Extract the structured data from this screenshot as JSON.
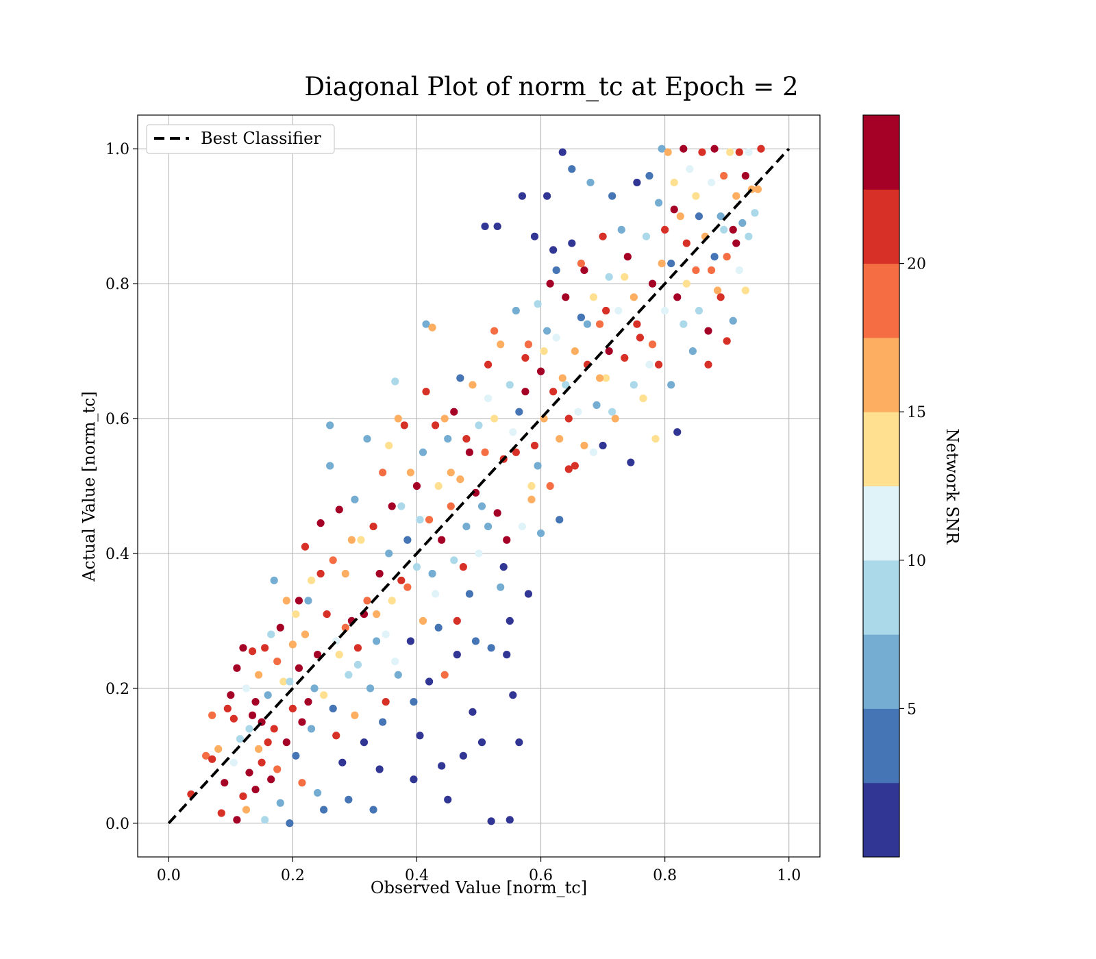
{
  "chart_data": {
    "type": "scatter",
    "title": "Diagonal Plot of norm_tc at Epoch = 2",
    "xlabel": "Observed Value [norm_tc]",
    "ylabel": "Actual Value [norm_tc]",
    "xlim": [
      -0.05,
      1.05
    ],
    "ylim": [
      -0.05,
      1.05
    ],
    "xticks": [
      "0.0",
      "0.2",
      "0.4",
      "0.6",
      "0.8",
      "1.0"
    ],
    "yticks": [
      "0.0",
      "0.2",
      "0.4",
      "0.6",
      "0.8",
      "1.0"
    ],
    "grid": true,
    "legend": {
      "placement": "top-left",
      "entries": [
        "Best Classifier"
      ]
    },
    "reference_line": {
      "name": "Best Classifier",
      "style": "dashed",
      "color": "#000000",
      "x": [
        0,
        1
      ],
      "y": [
        0,
        1
      ]
    },
    "colorbar": {
      "label": "Network SNR",
      "range": [
        0,
        25
      ],
      "ticks": [
        "5",
        "10",
        "15",
        "20"
      ],
      "colors": [
        "#313695",
        "#4575b4",
        "#74add1",
        "#abd9e9",
        "#e0f3f8",
        "#fee090",
        "#fdae61",
        "#f46d43",
        "#d73027",
        "#a50026"
      ]
    },
    "points": [
      [
        0.036,
        0.043,
        20
      ],
      [
        0.06,
        0.1,
        18
      ],
      [
        0.07,
        0.095,
        22
      ],
      [
        0.07,
        0.16,
        19
      ],
      [
        0.08,
        0.11,
        16
      ],
      [
        0.085,
        0.015,
        21
      ],
      [
        0.09,
        0.06,
        23
      ],
      [
        0.095,
        0.17,
        22
      ],
      [
        0.1,
        0.19,
        24
      ],
      [
        0.105,
        0.155,
        20
      ],
      [
        0.11,
        0.23,
        24
      ],
      [
        0.11,
        0.005,
        23
      ],
      [
        0.115,
        0.125,
        9
      ],
      [
        0.12,
        0.26,
        24
      ],
      [
        0.12,
        0.04,
        22
      ],
      [
        0.125,
        0.2,
        11
      ],
      [
        0.13,
        0.075,
        24
      ],
      [
        0.13,
        0.14,
        8
      ],
      [
        0.135,
        0.255,
        20
      ],
      [
        0.14,
        0.18,
        24
      ],
      [
        0.14,
        0.05,
        24
      ],
      [
        0.145,
        0.22,
        15
      ],
      [
        0.15,
        0.09,
        21
      ],
      [
        0.15,
        0.15,
        24
      ],
      [
        0.155,
        0.26,
        22
      ],
      [
        0.155,
        0.005,
        9
      ],
      [
        0.16,
        0.12,
        21
      ],
      [
        0.16,
        0.19,
        6
      ],
      [
        0.165,
        0.065,
        24
      ],
      [
        0.17,
        0.36,
        7
      ],
      [
        0.17,
        0.14,
        22
      ],
      [
        0.175,
        0.24,
        18
      ],
      [
        0.18,
        0.29,
        24
      ],
      [
        0.18,
        0.03,
        5
      ],
      [
        0.185,
        0.21,
        13
      ],
      [
        0.19,
        0.12,
        24
      ],
      [
        0.19,
        0.33,
        15
      ],
      [
        0.195,
        0.0,
        4
      ],
      [
        0.2,
        0.17,
        22
      ],
      [
        0.2,
        0.265,
        16
      ],
      [
        0.205,
        0.1,
        3
      ],
      [
        0.21,
        0.23,
        24
      ],
      [
        0.21,
        0.33,
        23
      ],
      [
        0.215,
        0.06,
        18
      ],
      [
        0.22,
        0.41,
        22
      ],
      [
        0.22,
        0.28,
        16
      ],
      [
        0.225,
        0.18,
        23
      ],
      [
        0.23,
        0.14,
        7
      ],
      [
        0.23,
        0.36,
        14
      ],
      [
        0.24,
        0.045,
        5
      ],
      [
        0.24,
        0.25,
        24
      ],
      [
        0.245,
        0.445,
        24
      ],
      [
        0.25,
        0.02,
        4
      ],
      [
        0.25,
        0.19,
        14
      ],
      [
        0.255,
        0.31,
        22
      ],
      [
        0.26,
        0.59,
        7
      ],
      [
        0.26,
        0.53,
        6
      ],
      [
        0.265,
        0.39,
        18
      ],
      [
        0.27,
        0.13,
        22
      ],
      [
        0.27,
        0.27,
        10
      ],
      [
        0.275,
        0.465,
        23
      ],
      [
        0.28,
        0.09,
        2
      ],
      [
        0.285,
        0.37,
        17
      ],
      [
        0.29,
        0.22,
        9
      ],
      [
        0.29,
        0.035,
        4
      ],
      [
        0.295,
        0.3,
        24
      ],
      [
        0.3,
        0.48,
        6
      ],
      [
        0.3,
        0.16,
        16
      ],
      [
        0.305,
        0.26,
        21
      ],
      [
        0.31,
        0.42,
        14
      ],
      [
        0.315,
        0.12,
        2
      ],
      [
        0.32,
        0.33,
        19
      ],
      [
        0.32,
        0.57,
        7
      ],
      [
        0.325,
        0.2,
        5
      ],
      [
        0.33,
        0.44,
        22
      ],
      [
        0.33,
        0.02,
        3
      ],
      [
        0.335,
        0.31,
        16
      ],
      [
        0.34,
        0.37,
        24
      ],
      [
        0.34,
        0.08,
        1
      ],
      [
        0.345,
        0.52,
        18
      ],
      [
        0.35,
        0.28,
        11
      ],
      [
        0.35,
        0.18,
        20
      ],
      [
        0.355,
        0.4,
        7
      ],
      [
        0.36,
        0.47,
        23
      ],
      [
        0.36,
        0.33,
        13
      ],
      [
        0.365,
        0.655,
        8
      ],
      [
        0.37,
        0.6,
        15
      ],
      [
        0.37,
        0.22,
        6
      ],
      [
        0.375,
        0.36,
        21
      ],
      [
        0.38,
        0.59,
        22
      ],
      [
        0.385,
        0.42,
        4
      ],
      [
        0.39,
        0.27,
        2
      ],
      [
        0.39,
        0.52,
        17
      ],
      [
        0.395,
        0.065,
        1
      ],
      [
        0.4,
        0.5,
        24
      ],
      [
        0.4,
        0.38,
        9
      ],
      [
        0.405,
        0.13,
        1
      ],
      [
        0.41,
        0.55,
        6
      ],
      [
        0.41,
        0.3,
        16
      ],
      [
        0.415,
        0.74,
        7
      ],
      [
        0.42,
        0.45,
        19
      ],
      [
        0.42,
        0.21,
        2
      ],
      [
        0.425,
        0.735,
        16
      ],
      [
        0.43,
        0.59,
        22
      ],
      [
        0.43,
        0.34,
        10
      ],
      [
        0.435,
        0.5,
        13
      ],
      [
        0.44,
        0.085,
        1
      ],
      [
        0.44,
        0.42,
        23
      ],
      [
        0.445,
        0.22,
        19
      ],
      [
        0.45,
        0.57,
        5
      ],
      [
        0.45,
        0.035,
        1
      ],
      [
        0.455,
        0.47,
        18
      ],
      [
        0.46,
        0.61,
        24
      ],
      [
        0.46,
        0.39,
        8
      ],
      [
        0.465,
        0.3,
        21
      ],
      [
        0.47,
        0.66,
        3
      ],
      [
        0.47,
        0.51,
        15
      ],
      [
        0.475,
        0.1,
        2
      ],
      [
        0.48,
        0.44,
        7
      ],
      [
        0.48,
        0.57,
        21
      ],
      [
        0.485,
        0.34,
        3
      ],
      [
        0.49,
        0.165,
        1
      ],
      [
        0.49,
        0.65,
        17
      ],
      [
        0.495,
        0.49,
        24
      ],
      [
        0.5,
        0.59,
        9
      ],
      [
        0.5,
        0.4,
        12
      ],
      [
        0.505,
        0.12,
        1
      ],
      [
        0.51,
        0.885,
        1
      ],
      [
        0.51,
        0.55,
        19
      ],
      [
        0.515,
        0.68,
        22
      ],
      [
        0.515,
        0.44,
        5
      ],
      [
        0.52,
        0.003,
        1
      ],
      [
        0.52,
        0.26,
        3
      ],
      [
        0.525,
        0.6,
        14
      ],
      [
        0.53,
        0.885,
        1
      ],
      [
        0.53,
        0.46,
        23
      ],
      [
        0.535,
        0.71,
        16
      ],
      [
        0.54,
        0.54,
        22
      ],
      [
        0.54,
        0.38,
        1
      ],
      [
        0.545,
        0.25,
        2
      ],
      [
        0.55,
        0.65,
        8
      ],
      [
        0.55,
        0.3,
        2
      ],
      [
        0.55,
        0.005,
        1
      ],
      [
        0.555,
        0.19,
        1
      ],
      [
        0.56,
        0.76,
        7
      ],
      [
        0.56,
        0.55,
        20
      ],
      [
        0.565,
        0.12,
        1
      ],
      [
        0.57,
        0.93,
        2
      ],
      [
        0.57,
        0.44,
        11
      ],
      [
        0.575,
        0.64,
        24
      ],
      [
        0.58,
        0.71,
        18
      ],
      [
        0.58,
        0.34,
        1
      ],
      [
        0.585,
        0.5,
        14
      ],
      [
        0.59,
        0.87,
        2
      ],
      [
        0.59,
        0.56,
        21
      ],
      [
        0.595,
        0.77,
        9
      ],
      [
        0.6,
        0.43,
        6
      ],
      [
        0.6,
        0.67,
        23
      ],
      [
        0.605,
        0.6,
        16
      ],
      [
        0.61,
        0.93,
        1
      ],
      [
        0.61,
        0.73,
        6
      ],
      [
        0.615,
        0.5,
        19
      ],
      [
        0.62,
        0.85,
        2
      ],
      [
        0.62,
        0.64,
        22
      ],
      [
        0.625,
        0.72,
        12
      ],
      [
        0.63,
        0.45,
        3
      ],
      [
        0.63,
        0.57,
        17
      ],
      [
        0.635,
        0.995,
        1
      ],
      [
        0.64,
        0.78,
        24
      ],
      [
        0.64,
        0.65,
        9
      ],
      [
        0.645,
        0.525,
        20
      ],
      [
        0.65,
        0.97,
        4
      ],
      [
        0.65,
        0.86,
        2
      ],
      [
        0.655,
        0.7,
        16
      ],
      [
        0.66,
        0.61,
        11
      ],
      [
        0.665,
        0.75,
        4
      ],
      [
        0.67,
        0.82,
        23
      ],
      [
        0.67,
        0.56,
        15
      ],
      [
        0.675,
        0.68,
        22
      ],
      [
        0.68,
        0.95,
        7
      ],
      [
        0.685,
        0.78,
        14
      ],
      [
        0.69,
        0.62,
        7
      ],
      [
        0.695,
        0.74,
        19
      ],
      [
        0.7,
        0.87,
        21
      ],
      [
        0.7,
        0.56,
        1
      ],
      [
        0.705,
        0.66,
        13
      ],
      [
        0.71,
        0.81,
        8
      ],
      [
        0.71,
        0.7,
        24
      ],
      [
        0.715,
        0.93,
        3
      ],
      [
        0.72,
        0.6,
        17
      ],
      [
        0.725,
        0.76,
        10
      ],
      [
        0.73,
        0.88,
        7
      ],
      [
        0.735,
        0.69,
        20
      ],
      [
        0.74,
        0.84,
        23
      ],
      [
        0.745,
        0.535,
        2
      ],
      [
        0.75,
        0.78,
        16
      ],
      [
        0.75,
        0.65,
        8
      ],
      [
        0.755,
        0.95,
        1
      ],
      [
        0.76,
        0.72,
        21
      ],
      [
        0.765,
        0.63,
        13
      ],
      [
        0.77,
        0.87,
        9
      ],
      [
        0.775,
        0.96,
        4
      ],
      [
        0.78,
        0.8,
        24
      ],
      [
        0.78,
        0.71,
        18
      ],
      [
        0.785,
        0.57,
        14
      ],
      [
        0.79,
        0.92,
        6
      ],
      [
        0.79,
        0.68,
        22
      ],
      [
        0.795,
        1.0,
        5
      ],
      [
        0.8,
        0.76,
        11
      ],
      [
        0.8,
        0.88,
        20
      ],
      [
        0.805,
        0.995,
        16
      ],
      [
        0.81,
        0.83,
        4
      ],
      [
        0.81,
        0.65,
        7
      ],
      [
        0.815,
        0.95,
        14
      ],
      [
        0.82,
        0.78,
        23
      ],
      [
        0.82,
        0.58,
        2
      ],
      [
        0.825,
        0.9,
        17
      ],
      [
        0.83,
        0.74,
        9
      ],
      [
        0.83,
        1.0,
        24
      ],
      [
        0.835,
        0.86,
        22
      ],
      [
        0.84,
        0.97,
        11
      ],
      [
        0.845,
        0.7,
        5
      ],
      [
        0.85,
        0.82,
        19
      ],
      [
        0.85,
        0.93,
        14
      ],
      [
        0.855,
        0.76,
        8
      ],
      [
        0.86,
        0.995,
        21
      ],
      [
        0.865,
        0.87,
        16
      ],
      [
        0.87,
        0.73,
        24
      ],
      [
        0.87,
        0.68,
        22
      ],
      [
        0.875,
        0.95,
        10
      ],
      [
        0.88,
        0.84,
        3
      ],
      [
        0.88,
        1.0,
        23
      ],
      [
        0.885,
        0.79,
        15
      ],
      [
        0.89,
        0.9,
        7
      ],
      [
        0.89,
        0.78,
        21
      ],
      [
        0.895,
        0.96,
        19
      ],
      [
        0.9,
        0.84,
        18
      ],
      [
        0.9,
        0.715,
        22
      ],
      [
        0.905,
        0.995,
        13
      ],
      [
        0.91,
        0.88,
        24
      ],
      [
        0.91,
        0.745,
        7
      ],
      [
        0.915,
        0.93,
        16
      ],
      [
        0.92,
        0.82,
        11
      ],
      [
        0.92,
        0.995,
        20
      ],
      [
        0.925,
        0.89,
        6
      ],
      [
        0.93,
        0.96,
        23
      ],
      [
        0.93,
        0.79,
        14
      ],
      [
        0.935,
        0.87,
        8
      ],
      [
        0.94,
        0.94,
        17
      ],
      [
        0.945,
        0.905,
        9
      ],
      [
        0.95,
        0.94,
        15
      ],
      [
        0.955,
        1.0,
        22
      ],
      [
        0.145,
        0.11,
        17
      ],
      [
        0.125,
        0.02,
        15
      ],
      [
        0.165,
        0.28,
        9
      ],
      [
        0.205,
        0.31,
        14
      ],
      [
        0.235,
        0.2,
        7
      ],
      [
        0.265,
        0.17,
        3
      ],
      [
        0.285,
        0.29,
        19
      ],
      [
        0.305,
        0.235,
        8
      ],
      [
        0.345,
        0.15,
        3
      ],
      [
        0.365,
        0.24,
        12
      ],
      [
        0.385,
        0.35,
        19
      ],
      [
        0.405,
        0.45,
        9
      ],
      [
        0.435,
        0.29,
        3
      ],
      [
        0.455,
        0.52,
        15
      ],
      [
        0.475,
        0.38,
        22
      ],
      [
        0.495,
        0.27,
        3
      ],
      [
        0.515,
        0.63,
        10
      ],
      [
        0.535,
        0.35,
        7
      ],
      [
        0.555,
        0.58,
        12
      ],
      [
        0.575,
        0.69,
        21
      ],
      [
        0.595,
        0.53,
        5
      ],
      [
        0.615,
        0.8,
        24
      ],
      [
        0.635,
        0.66,
        16
      ],
      [
        0.655,
        0.53,
        22
      ],
      [
        0.675,
        0.74,
        6
      ],
      [
        0.695,
        0.66,
        17
      ],
      [
        0.715,
        0.61,
        9
      ],
      [
        0.735,
        0.81,
        14
      ],
      [
        0.755,
        0.74,
        22
      ],
      [
        0.775,
        0.68,
        10
      ],
      [
        0.795,
        0.83,
        17
      ],
      [
        0.815,
        0.91,
        24
      ],
      [
        0.835,
        0.8,
        13
      ],
      [
        0.855,
        0.9,
        3
      ],
      [
        0.875,
        0.82,
        18
      ],
      [
        0.895,
        0.88,
        9
      ],
      [
        0.915,
        0.86,
        23
      ],
      [
        0.935,
        0.995,
        11
      ],
      [
        0.105,
        0.09,
        12
      ],
      [
        0.135,
        0.16,
        24
      ],
      [
        0.175,
        0.08,
        19
      ],
      [
        0.195,
        0.21,
        8
      ],
      [
        0.215,
        0.15,
        23
      ],
      [
        0.225,
        0.33,
        7
      ],
      [
        0.245,
        0.37,
        21
      ],
      [
        0.275,
        0.25,
        14
      ],
      [
        0.295,
        0.42,
        17
      ],
      [
        0.315,
        0.31,
        23
      ],
      [
        0.335,
        0.27,
        6
      ],
      [
        0.355,
        0.56,
        14
      ],
      [
        0.375,
        0.47,
        8
      ],
      [
        0.395,
        0.18,
        4
      ],
      [
        0.415,
        0.64,
        21
      ],
      [
        0.425,
        0.37,
        6
      ],
      [
        0.445,
        0.6,
        17
      ],
      [
        0.465,
        0.25,
        2
      ],
      [
        0.485,
        0.55,
        24
      ],
      [
        0.505,
        0.47,
        5
      ],
      [
        0.525,
        0.73,
        18
      ],
      [
        0.545,
        0.42,
        23
      ],
      [
        0.565,
        0.61,
        3
      ],
      [
        0.585,
        0.48,
        17
      ],
      [
        0.605,
        0.7,
        13
      ],
      [
        0.625,
        0.82,
        4
      ],
      [
        0.645,
        0.6,
        22
      ],
      [
        0.665,
        0.83,
        18
      ],
      [
        0.685,
        0.55,
        11
      ],
      [
        0.705,
        0.76,
        22
      ]
    ]
  }
}
